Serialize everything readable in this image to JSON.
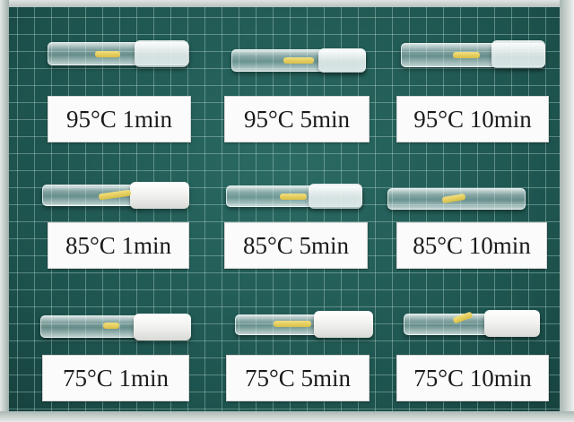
{
  "labels": {
    "r1c1": "95°C 1min",
    "r1c2": "95°C 5min",
    "r1c3": "95°C 10min",
    "r2c1": "85°C 1min",
    "r2c2": "85°C 5min",
    "r2c3": "85°C 10min",
    "r3c1": "75°C 1min",
    "r3c2": "75°C 5min",
    "r3c3": "75°C 10min"
  },
  "colors": {
    "mat": "#1f5a55",
    "grid": "#bee1d7",
    "sample": "#e6cc5a",
    "cap": "#f4f4f2",
    "label_bg": "#fbfbfb"
  }
}
